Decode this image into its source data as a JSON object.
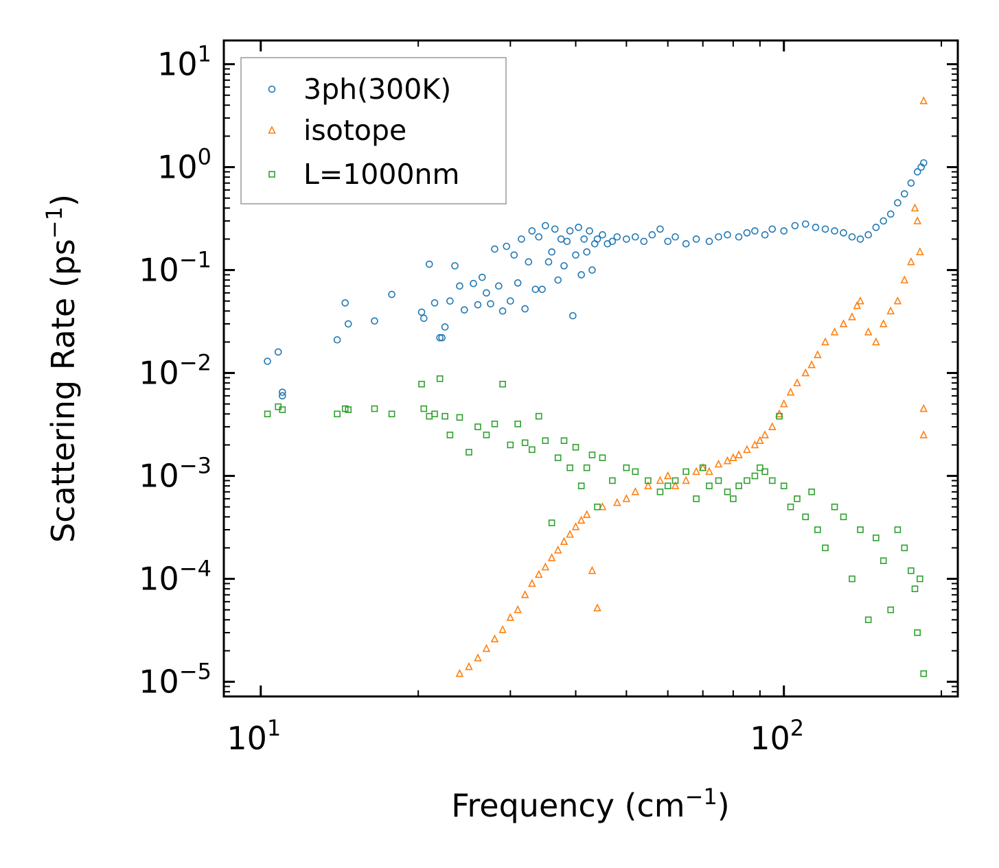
{
  "chart_data": {
    "type": "scatter",
    "title": "",
    "xlabel": "Frequency (cm",
    "xlabel_sup": "−1",
    "xlabel_end": ")",
    "ylabel": "Scattering Rate (ps",
    "ylabel_sup": "−1",
    "ylabel_end": ")",
    "xscale": "log",
    "yscale": "log",
    "xlim": [
      8.5,
      215
    ],
    "ylim": [
      7.2e-06,
      17
    ],
    "x_ticks": [
      {
        "value": 10,
        "base": "10",
        "exp": "1"
      },
      {
        "value": 100,
        "base": "10",
        "exp": "2"
      }
    ],
    "y_ticks": [
      {
        "value": 10,
        "base": "10",
        "exp": "1"
      },
      {
        "value": 1,
        "base": "10",
        "exp": "0"
      },
      {
        "value": 0.1,
        "base": "10",
        "exp": "−1"
      },
      {
        "value": 0.01,
        "base": "10",
        "exp": "−2"
      },
      {
        "value": 0.001,
        "base": "10",
        "exp": "−3"
      },
      {
        "value": 0.0001,
        "base": "10",
        "exp": "−4"
      },
      {
        "value": 1e-05,
        "base": "10",
        "exp": "−5"
      }
    ],
    "legend_position": "top-left",
    "series": [
      {
        "name": "3ph(300K)",
        "color": "#1f77b4",
        "marker": "circle",
        "x": [
          10.3,
          10.8,
          11.0,
          11.0,
          14.0,
          14.5,
          14.7,
          16.5,
          17.8,
          20.3,
          20.5,
          21.0,
          21.5,
          22.0,
          22.2,
          22.5,
          23.0,
          23.5,
          24.0,
          24.5,
          25.5,
          26.0,
          26.5,
          27.0,
          27.5,
          28.0,
          28.5,
          29.0,
          29.5,
          30.0,
          30.5,
          31.0,
          31.5,
          32.0,
          32.5,
          33.0,
          33.5,
          34.0,
          34.5,
          35.0,
          35.5,
          36.0,
          36.5,
          37.0,
          37.5,
          38.0,
          38.5,
          39.0,
          39.5,
          40.0,
          40.5,
          41.0,
          41.5,
          42.0,
          42.5,
          43.0,
          43.5,
          44.0,
          45.0,
          46.0,
          47.0,
          48.0,
          50.0,
          52.0,
          54.0,
          56.0,
          58.0,
          60.0,
          62.0,
          65.0,
          68.0,
          72.0,
          75.0,
          78.0,
          82.0,
          85.0,
          88.0,
          92.0,
          95.0,
          100.0,
          105.0,
          110.0,
          115.0,
          120.0,
          125.0,
          130.0,
          135.0,
          140.0,
          145.0,
          150.0,
          155.0,
          160.0,
          165.0,
          170.0,
          175.0,
          180.0,
          183.0,
          185.0
        ],
        "y": [
          0.013,
          0.016,
          0.0065,
          0.006,
          0.021,
          0.048,
          0.03,
          0.032,
          0.058,
          0.039,
          0.034,
          0.114,
          0.048,
          0.022,
          0.022,
          0.028,
          0.05,
          0.11,
          0.07,
          0.041,
          0.074,
          0.046,
          0.085,
          0.06,
          0.047,
          0.16,
          0.07,
          0.04,
          0.17,
          0.05,
          0.14,
          0.075,
          0.2,
          0.042,
          0.12,
          0.24,
          0.065,
          0.21,
          0.065,
          0.27,
          0.12,
          0.15,
          0.25,
          0.08,
          0.2,
          0.11,
          0.19,
          0.24,
          0.036,
          0.14,
          0.26,
          0.09,
          0.2,
          0.15,
          0.24,
          0.1,
          0.18,
          0.2,
          0.22,
          0.18,
          0.19,
          0.21,
          0.2,
          0.21,
          0.19,
          0.22,
          0.25,
          0.19,
          0.21,
          0.18,
          0.2,
          0.19,
          0.21,
          0.22,
          0.21,
          0.23,
          0.24,
          0.22,
          0.25,
          0.24,
          0.27,
          0.28,
          0.26,
          0.25,
          0.24,
          0.23,
          0.21,
          0.2,
          0.22,
          0.26,
          0.3,
          0.35,
          0.45,
          0.55,
          0.7,
          0.9,
          1.0,
          1.1
        ]
      },
      {
        "name": "isotope",
        "color": "#ff7f0e",
        "marker": "triangle",
        "x": [
          24.0,
          25.0,
          26.0,
          27.0,
          28.0,
          29.0,
          30.0,
          31.0,
          32.0,
          33.0,
          34.0,
          35.0,
          36.0,
          37.0,
          38.0,
          39.0,
          40.0,
          41.0,
          42.0,
          43.0,
          44.0,
          45.0,
          48.0,
          50.0,
          52.0,
          55.0,
          58.0,
          60.0,
          62.0,
          65.0,
          68.0,
          70.0,
          72.0,
          75.0,
          78.0,
          80.0,
          82.0,
          85.0,
          88.0,
          90.0,
          92.0,
          95.0,
          98.0,
          100.0,
          103.0,
          106.0,
          110.0,
          113.0,
          116.0,
          120.0,
          125.0,
          130.0,
          135.0,
          138.0,
          140.0,
          145.0,
          150.0,
          155.0,
          160.0,
          165.0,
          170.0,
          175.0,
          178.0,
          180.0,
          182.0,
          185.0,
          185.0,
          185.0
        ],
        "y": [
          1.2e-05,
          1.4e-05,
          1.7e-05,
          2.1e-05,
          2.6e-05,
          3.2e-05,
          4.2e-05,
          5e-05,
          7e-05,
          9e-05,
          0.00011,
          0.00013,
          0.00016,
          0.00019,
          0.00023,
          0.00027,
          0.00032,
          0.00037,
          0.00042,
          0.00012,
          5.2e-05,
          0.0005,
          0.00055,
          0.0006,
          0.0007,
          0.0008,
          0.0009,
          0.001,
          0.0008,
          0.0009,
          0.0011,
          0.0012,
          0.0011,
          0.0013,
          0.0014,
          0.0015,
          0.0016,
          0.0018,
          0.002,
          0.0022,
          0.0025,
          0.003,
          0.004,
          0.005,
          0.0065,
          0.008,
          0.01,
          0.012,
          0.015,
          0.02,
          0.025,
          0.03,
          0.035,
          0.045,
          0.05,
          0.025,
          0.02,
          0.03,
          0.04,
          0.05,
          0.08,
          0.12,
          0.4,
          0.3,
          0.15,
          0.0045,
          0.0025,
          4.4
        ]
      },
      {
        "name": "L=1000nm",
        "color": "#2ca02c",
        "marker": "square",
        "x": [
          10.3,
          10.8,
          11.0,
          14.0,
          14.5,
          14.7,
          16.5,
          17.8,
          20.3,
          20.5,
          21.0,
          21.5,
          22.0,
          22.5,
          23.0,
          24.0,
          25.0,
          26.0,
          27.0,
          28.0,
          29.0,
          30.0,
          31.0,
          32.0,
          33.0,
          34.0,
          35.0,
          36.0,
          37.0,
          38.0,
          39.0,
          40.0,
          41.0,
          42.0,
          43.0,
          44.0,
          45.0,
          47.0,
          50.0,
          52.0,
          55.0,
          58.0,
          60.0,
          62.0,
          65.0,
          68.0,
          70.0,
          72.0,
          75.0,
          78.0,
          80.0,
          82.0,
          85.0,
          88.0,
          90.0,
          92.0,
          95.0,
          98.0,
          100.0,
          103.0,
          106.0,
          110.0,
          113.0,
          116.0,
          120.0,
          125.0,
          130.0,
          135.0,
          140.0,
          145.0,
          150.0,
          155.0,
          160.0,
          165.0,
          170.0,
          175.0,
          178.0,
          180.0,
          182.0,
          185.0
        ],
        "y": [
          0.004,
          0.0047,
          0.0044,
          0.004,
          0.0045,
          0.0044,
          0.0045,
          0.004,
          0.0078,
          0.0045,
          0.0038,
          0.004,
          0.0088,
          0.0038,
          0.0025,
          0.0037,
          0.0017,
          0.003,
          0.0025,
          0.0032,
          0.0078,
          0.002,
          0.0032,
          0.0021,
          0.0018,
          0.0038,
          0.0022,
          0.00035,
          0.0015,
          0.0022,
          0.0012,
          0.0019,
          0.0008,
          0.0012,
          0.0016,
          0.0005,
          0.0015,
          0.0009,
          0.0012,
          0.0011,
          0.0009,
          0.0007,
          0.0008,
          0.0009,
          0.0011,
          0.0006,
          0.0012,
          0.0008,
          0.0009,
          0.0007,
          0.0006,
          0.0008,
          0.0009,
          0.001,
          0.0012,
          0.0011,
          0.0009,
          0.0038,
          0.0008,
          0.0005,
          0.0006,
          0.0004,
          0.0007,
          0.0003,
          0.0002,
          0.0005,
          0.0004,
          0.0001,
          0.0003,
          4e-05,
          0.00025,
          0.00015,
          5e-05,
          0.0003,
          0.0002,
          0.00012,
          8e-05,
          3e-05,
          0.0001,
          1.2e-05
        ]
      }
    ]
  }
}
